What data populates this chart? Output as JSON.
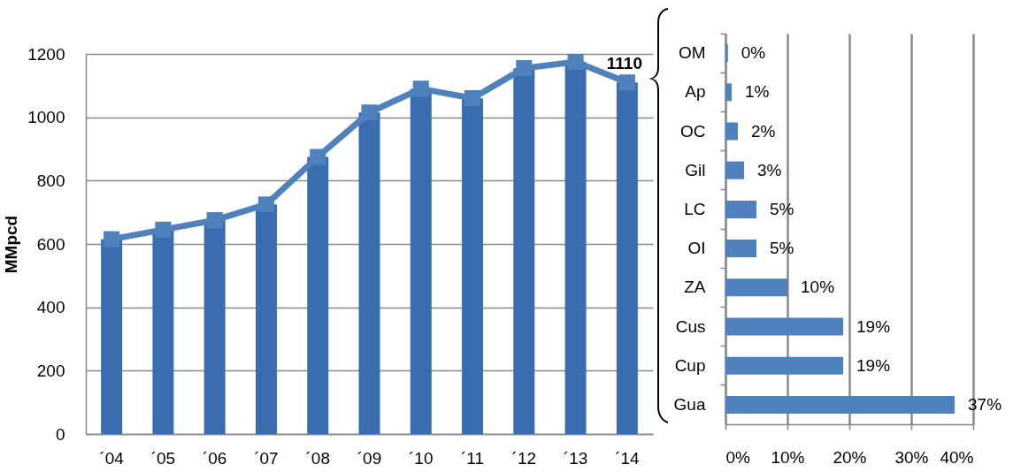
{
  "chart_data": [
    {
      "type": "bar",
      "ylabel": "MMpcd",
      "categories": [
        "´04",
        "´05",
        "´06",
        "´07",
        "´08",
        "´09",
        "´10",
        "´11",
        "´12",
        "´13",
        "´14"
      ],
      "series": [
        {
          "color": "#3a6cb0",
          "values": [
            615,
            645,
            675,
            725,
            875,
            1015,
            1090,
            1060,
            1155,
            1175,
            1110
          ]
        },
        {
          "type": "line",
          "color": "#4f81bd",
          "values": [
            615,
            645,
            675,
            725,
            875,
            1015,
            1090,
            1060,
            1155,
            1175,
            1110
          ],
          "value_labels": [
            null,
            null,
            null,
            null,
            null,
            null,
            null,
            null,
            null,
            null,
            "1110"
          ]
        }
      ],
      "ylim": [
        0,
        1200
      ],
      "yticks": [
        0,
        200,
        400,
        600,
        800,
        1000,
        1200
      ],
      "grid": "y",
      "marker": "square",
      "line_style": "solid"
    },
    {
      "type": "bar",
      "orientation": "horizontal",
      "categories": [
        "OM",
        "Ap",
        "OC",
        "Gil",
        "LC",
        "OI",
        "ZA",
        "Cus",
        "Cup",
        "Gua"
      ],
      "values": [
        0.4,
        1,
        2,
        3,
        5,
        5,
        10,
        19,
        19,
        37
      ],
      "value_labels": [
        "0%",
        "1%",
        "2%",
        "3%",
        "5%",
        "5%",
        "10%",
        "19%",
        "19%",
        "37%"
      ],
      "color": "#4f81bd",
      "xlim": [
        0,
        40
      ],
      "xticks": [
        {
          "value": 0,
          "label": "0%"
        },
        {
          "value": 10,
          "label": "10%"
        },
        {
          "value": 20,
          "label": "20%"
        },
        {
          "value": 30,
          "label": "30%"
        },
        {
          "value": 40,
          "label": "40%"
        }
      ],
      "grid": "x"
    }
  ]
}
